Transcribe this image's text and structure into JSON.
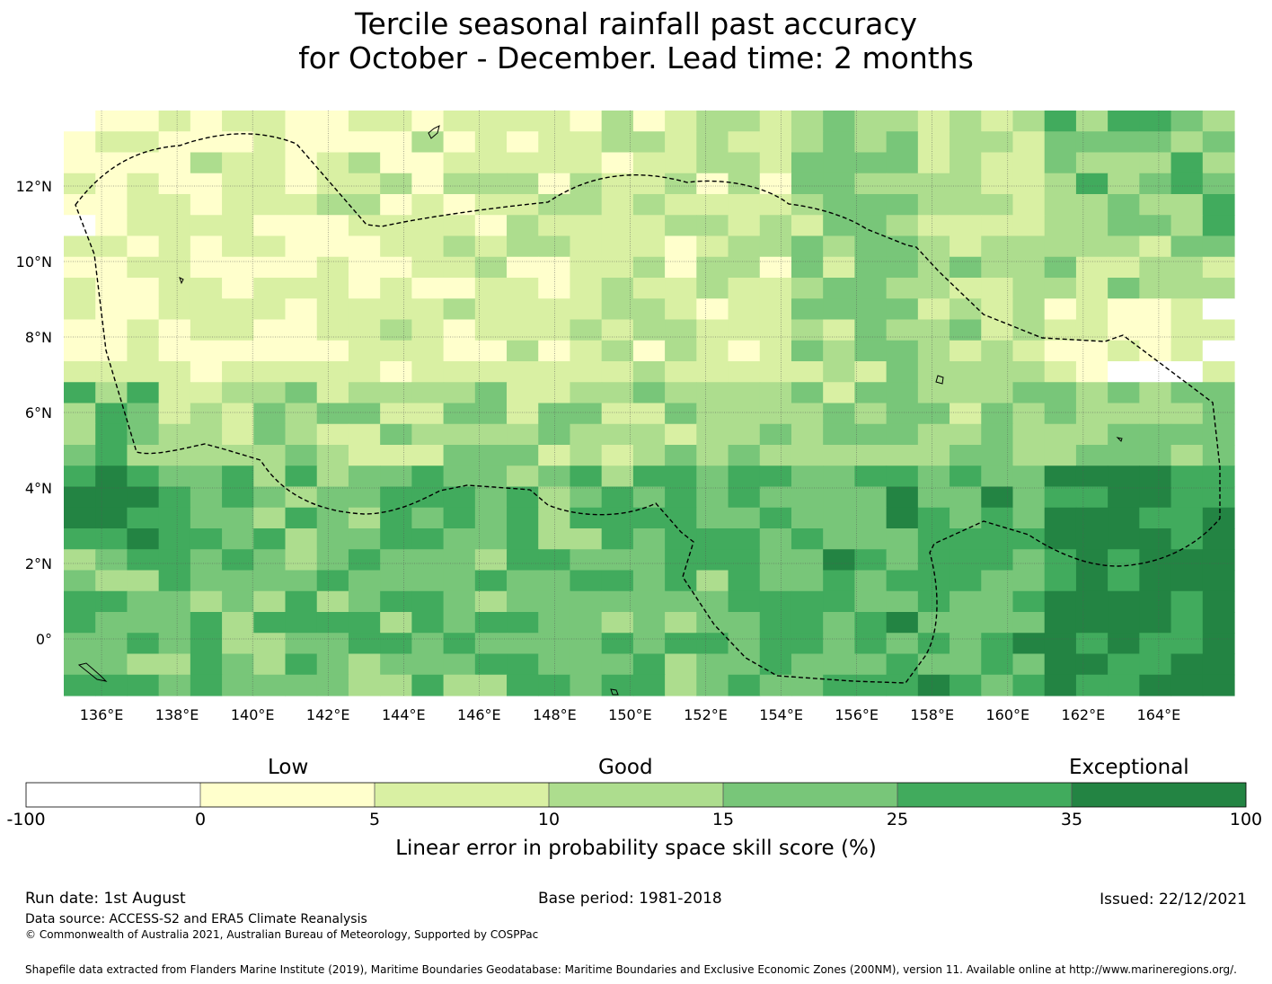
{
  "title": {
    "line1": "Tercile seasonal rainfall past accuracy",
    "line2": "for October - December. Lead time: 2 months"
  },
  "map": {
    "lon_range": [
      135,
      166
    ],
    "lat_range": [
      -1.5,
      14
    ],
    "x_ticks": [
      "136°E",
      "138°E",
      "140°E",
      "142°E",
      "144°E",
      "146°E",
      "148°E",
      "150°E",
      "152°E",
      "154°E",
      "156°E",
      "158°E",
      "160°E",
      "162°E",
      "164°E"
    ],
    "y_ticks": [
      "12°N",
      "10°N",
      "8°N",
      "6°N",
      "4°N",
      "2°N",
      "0°"
    ],
    "grid": "dotted",
    "eez_boundary": "dashed black line"
  },
  "colorbar": {
    "categories": [
      "Low",
      "Good",
      "Exceptional"
    ],
    "ticks": [
      "-100",
      "0",
      "5",
      "10",
      "15",
      "25",
      "35",
      "100"
    ],
    "colors": [
      "#ffffff",
      "#ffffcc",
      "#d9f0a3",
      "#addd8e",
      "#78c679",
      "#41ab5d",
      "#238443"
    ],
    "label": "Linear error in probability space skill score (%)"
  },
  "footer": {
    "run_date": "Run date: 1st August",
    "base_period": "Base period: 1981-2018",
    "issued": "Issued: 22/12/2021",
    "data_source": "Data source: ACCESS-S2 and ERA5 Climate Reanalysis",
    "copyright": "© Commonwealth of Australia 2021, Australian Bureau of Meteorology, Supported by COSPPac",
    "shapefile": "Shapefile data extracted from Flanders Marine Institute (2019), Maritime Boundaries Geodatabase: Maritime Boundaries and Exclusive Economic Zones (200NM), version 11. Available online at http://www.marineregions.org/."
  }
}
